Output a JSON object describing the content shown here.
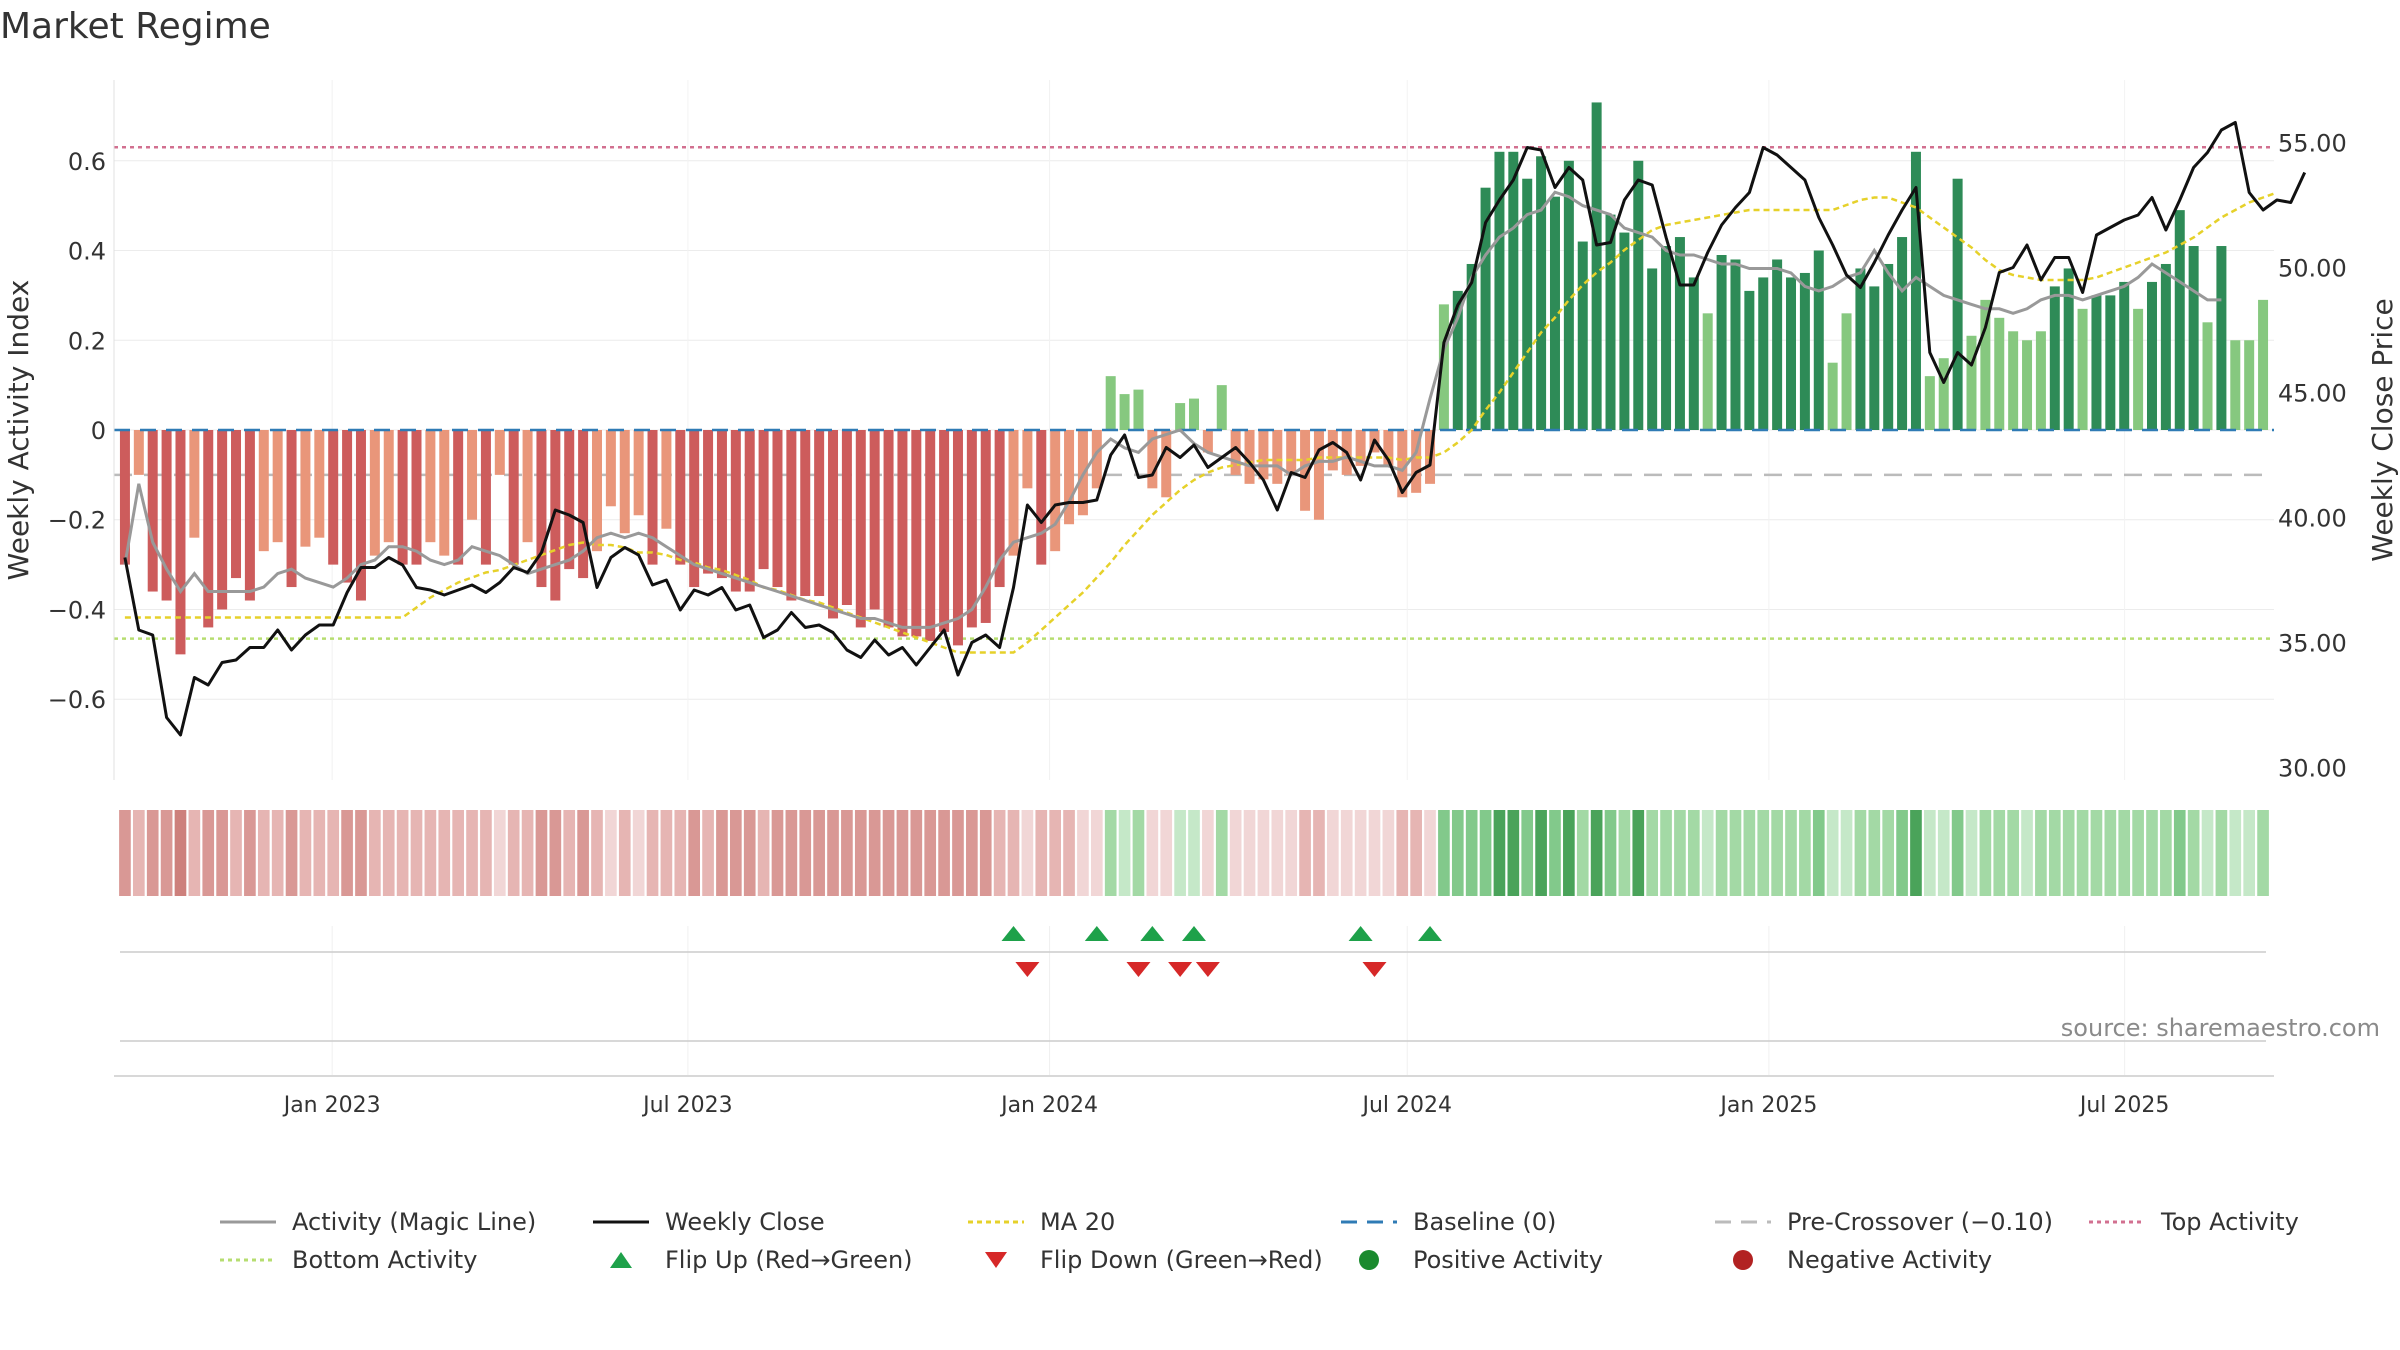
{
  "title": "Market Regime",
  "source": "source: sharemaestro.com",
  "colors": {
    "pos_dark": "#2e8b57",
    "pos_light": "#86c87f",
    "neg_dark": "#cd5c5c",
    "neg_light": "#e9967a",
    "magic": "#999999",
    "close": "#111111",
    "ma": "#e6d12a",
    "baseline": "#2f7bb5",
    "precross": "#bbbbbb",
    "top": "#d27090",
    "bottom": "#b6dd70",
    "flip_up": "#1ea14a",
    "flip_down": "#d62828",
    "marker_pos": "#1a8a2e",
    "marker_neg": "#b22222"
  },
  "chart_data": {
    "type": "bar",
    "x_labels": [
      "Jan 2023",
      "Jul 2023",
      "Jan 2024",
      "Jul 2024",
      "Jan 2025",
      "Jul 2025"
    ],
    "x_range": [
      "2022-09-12",
      "2025-09-15"
    ],
    "left_axis": {
      "label": "Weekly Activity Index",
      "ticks": [
        "0.6",
        "0.4",
        "0.2",
        "0",
        "−0.2",
        "−0.4",
        "−0.6"
      ],
      "ylim": [
        -0.78,
        0.78
      ]
    },
    "right_axis": {
      "label": "Weekly Close Price",
      "ticks": [
        "55.00",
        "50.00",
        "45.00",
        "40.00",
        "35.00",
        "30.00"
      ],
      "ylim": [
        29.5,
        57.5
      ]
    },
    "reference_lines": {
      "baseline": 0,
      "pre_crossover": -0.1,
      "top_activity": 0.63,
      "bottom_activity": -0.465
    },
    "activity": [
      -0.3,
      -0.1,
      -0.36,
      -0.38,
      -0.5,
      -0.24,
      -0.44,
      -0.4,
      -0.33,
      -0.38,
      -0.27,
      -0.25,
      -0.35,
      -0.26,
      -0.24,
      -0.3,
      -0.34,
      -0.38,
      -0.28,
      -0.25,
      -0.3,
      -0.3,
      -0.25,
      -0.28,
      -0.3,
      -0.2,
      -0.3,
      -0.1,
      -0.3,
      -0.25,
      -0.35,
      -0.38,
      -0.31,
      -0.33,
      -0.27,
      -0.17,
      -0.23,
      -0.19,
      -0.3,
      -0.22,
      -0.3,
      -0.35,
      -0.32,
      -0.33,
      -0.36,
      -0.36,
      -0.31,
      -0.35,
      -0.38,
      -0.37,
      -0.37,
      -0.42,
      -0.39,
      -0.44,
      -0.4,
      -0.44,
      -0.46,
      -0.46,
      -0.47,
      -0.45,
      -0.48,
      -0.44,
      -0.43,
      -0.35,
      -0.28,
      -0.13,
      -0.3,
      -0.27,
      -0.21,
      -0.19,
      -0.13,
      0.12,
      0.08,
      0.09,
      -0.13,
      -0.15,
      0.06,
      0.07,
      -0.05,
      0.1,
      -0.1,
      -0.12,
      -0.11,
      -0.12,
      -0.1,
      -0.18,
      -0.2,
      -0.09,
      -0.1,
      -0.08,
      -0.05,
      -0.08,
      -0.15,
      -0.14,
      -0.12,
      0.28,
      0.31,
      0.37,
      0.54,
      0.62,
      0.62,
      0.56,
      0.61,
      0.52,
      0.6,
      0.42,
      0.73,
      0.48,
      0.44,
      0.6,
      0.36,
      0.41,
      0.43,
      0.34,
      0.26,
      0.39,
      0.38,
      0.31,
      0.34,
      0.38,
      0.34,
      0.35,
      0.4,
      0.15,
      0.26,
      0.36,
      0.32,
      0.37,
      0.43,
      0.62,
      0.12,
      0.16,
      0.56,
      0.21,
      0.29,
      0.25,
      0.22,
      0.2,
      0.22,
      0.32,
      0.36,
      0.27,
      0.3,
      0.3,
      0.33,
      0.27,
      0.33,
      0.37,
      0.49,
      0.41,
      0.24,
      0.41,
      0.2,
      0.2,
      0.29
    ],
    "magic_line": [
      -0.3,
      -0.12,
      -0.25,
      -0.31,
      -0.36,
      -0.32,
      -0.36,
      -0.36,
      -0.36,
      -0.36,
      -0.35,
      -0.32,
      -0.31,
      -0.33,
      -0.34,
      -0.35,
      -0.33,
      -0.3,
      -0.29,
      -0.26,
      -0.26,
      -0.27,
      -0.29,
      -0.3,
      -0.29,
      -0.26,
      -0.27,
      -0.28,
      -0.3,
      -0.32,
      -0.31,
      -0.3,
      -0.29,
      -0.27,
      -0.24,
      -0.23,
      -0.24,
      -0.23,
      -0.24,
      -0.26,
      -0.28,
      -0.3,
      -0.31,
      -0.32,
      -0.33,
      -0.34,
      -0.35,
      -0.36,
      -0.37,
      -0.38,
      -0.39,
      -0.4,
      -0.41,
      -0.42,
      -0.42,
      -0.43,
      -0.44,
      -0.44,
      -0.44,
      -0.43,
      -0.42,
      -0.4,
      -0.35,
      -0.29,
      -0.25,
      -0.24,
      -0.23,
      -0.21,
      -0.16,
      -0.1,
      -0.05,
      -0.02,
      -0.04,
      -0.05,
      -0.02,
      -0.01,
      0,
      -0.03,
      -0.05,
      -0.06,
      -0.07,
      -0.08,
      -0.08,
      -0.08,
      -0.1,
      -0.08,
      -0.07,
      -0.07,
      -0.06,
      -0.07,
      -0.08,
      -0.08,
      -0.09,
      -0.05,
      0.07,
      0.18,
      0.25,
      0.34,
      0.39,
      0.43,
      0.45,
      0.48,
      0.49,
      0.53,
      0.52,
      0.5,
      0.49,
      0.48,
      0.45,
      0.44,
      0.43,
      0.4,
      0.39,
      0.39,
      0.38,
      0.37,
      0.37,
      0.36,
      0.36,
      0.36,
      0.35,
      0.32,
      0.31,
      0.32,
      0.34,
      0.35,
      0.4,
      0.35,
      0.31,
      0.34,
      0.32,
      0.3,
      0.29,
      0.28,
      0.27,
      0.27,
      0.26,
      0.27,
      0.29,
      0.3,
      0.3,
      0.29,
      0.3,
      0.31,
      0.32,
      0.34,
      0.37,
      0.35,
      0.33,
      0.31,
      0.29,
      0.29
    ],
    "weekly_close": [
      38.4,
      35.5,
      35.3,
      32.0,
      31.3,
      33.6,
      33.3,
      34.2,
      34.3,
      34.8,
      34.8,
      35.5,
      34.7,
      35.3,
      35.7,
      35.7,
      37.0,
      38.0,
      38.0,
      38.4,
      38.1,
      37.2,
      37.1,
      36.9,
      37.1,
      37.3,
      37.0,
      37.4,
      38.0,
      37.8,
      38.6,
      40.3,
      40.1,
      39.8,
      37.2,
      38.4,
      38.8,
      38.5,
      37.3,
      37.5,
      36.3,
      37.1,
      36.9,
      37.2,
      36.3,
      36.5,
      35.2,
      35.5,
      36.2,
      35.6,
      35.7,
      35.4,
      34.7,
      34.4,
      35.1,
      34.5,
      34.8,
      34.1,
      34.8,
      35.5,
      33.7,
      35.0,
      35.3,
      34.8,
      37.2,
      40.5,
      39.8,
      40.5,
      40.6,
      40.6,
      40.7,
      42.5,
      43.3,
      41.6,
      41.7,
      42.8,
      42.4,
      42.9,
      42.0,
      42.4,
      42.8,
      42.2,
      41.5,
      40.3,
      41.8,
      41.6,
      42.7,
      43.0,
      42.6,
      41.5,
      43.1,
      42.3,
      41.0,
      41.8,
      42.1,
      47.0,
      48.5,
      49.4,
      51.8,
      52.7,
      53.5,
      54.8,
      54.7,
      53.2,
      54.0,
      53.5,
      50.9,
      51.0,
      52.7,
      53.5,
      53.3,
      51.2,
      49.3,
      49.3,
      50.6,
      51.7,
      52.4,
      53.0,
      54.8,
      54.5,
      54.0,
      53.5,
      52.0,
      50.9,
      49.7,
      49.2,
      50.2,
      51.3,
      52.3,
      53.2,
      46.6,
      45.4,
      46.6,
      46.1,
      47.6,
      49.8,
      50.0,
      50.9,
      49.5,
      50.4,
      50.4,
      49.0,
      51.3,
      51.6,
      51.9,
      52.1,
      52.8,
      51.5,
      52.7,
      54.0,
      54.6,
      55.5,
      55.8,
      53.0,
      52.3,
      52.7,
      52.6,
      53.8
    ],
    "ma20": [
      36.0,
      36.0,
      36.0,
      36.0,
      36.0,
      36.0,
      36.0,
      36.0,
      36.0,
      36.0,
      36.0,
      36.0,
      36.0,
      36.0,
      36.0,
      36.0,
      36.0,
      36.0,
      36.0,
      36.0,
      36.0,
      36.4,
      36.8,
      37.1,
      37.4,
      37.6,
      37.8,
      37.9,
      38.1,
      38.3,
      38.5,
      38.7,
      38.9,
      39.0,
      38.9,
      38.9,
      38.8,
      38.6,
      38.6,
      38.5,
      38.3,
      38.2,
      38.0,
      37.9,
      37.7,
      37.5,
      37.2,
      37.1,
      36.9,
      36.7,
      36.6,
      36.4,
      36.2,
      36.0,
      35.8,
      35.6,
      35.4,
      35.2,
      35.0,
      34.8,
      34.6,
      34.6,
      34.6,
      34.6,
      34.6,
      35.0,
      35.5,
      36.0,
      36.5,
      37.0,
      37.6,
      38.2,
      38.9,
      39.5,
      40.1,
      40.6,
      41.1,
      41.5,
      41.8,
      42.0,
      42.1,
      42.2,
      42.3,
      42.3,
      42.3,
      42.3,
      42.4,
      42.4,
      42.4,
      42.4,
      42.4,
      42.4,
      42.3,
      42.4,
      42.4,
      42.6,
      43.0,
      43.5,
      44.3,
      45.0,
      45.8,
      46.6,
      47.4,
      48.0,
      48.7,
      49.3,
      49.8,
      50.2,
      50.7,
      51.1,
      51.5,
      51.7,
      51.8,
      51.9,
      52.0,
      52.1,
      52.2,
      52.3,
      52.3,
      52.3,
      52.3,
      52.3,
      52.3,
      52.3,
      52.5,
      52.7,
      52.8,
      52.8,
      52.6,
      52.4,
      52.0,
      51.6,
      51.2,
      50.8,
      50.3,
      49.9,
      49.7,
      49.6,
      49.5,
      49.5,
      49.5,
      49.5,
      49.6,
      49.8,
      50.0,
      50.2,
      50.4,
      50.6,
      50.9,
      51.2,
      51.6,
      52.0,
      52.3,
      52.6,
      52.8,
      53.0
    ],
    "strip_levels": [
      2,
      1,
      2,
      2,
      3,
      1,
      2,
      2,
      1,
      2,
      1,
      1,
      2,
      1,
      1,
      1,
      2,
      2,
      1,
      1,
      1,
      1,
      1,
      1,
      1,
      1,
      1,
      0,
      1,
      1,
      2,
      2,
      1,
      2,
      1,
      0,
      1,
      0,
      1,
      1,
      1,
      2,
      1,
      2,
      2,
      2,
      1,
      2,
      2,
      2,
      2,
      2,
      2,
      2,
      2,
      2,
      2,
      2,
      2,
      2,
      2,
      2,
      2,
      1,
      1,
      0,
      1,
      1,
      1,
      0,
      0,
      1,
      0,
      1,
      0,
      0,
      0,
      0,
      0,
      1,
      0,
      0,
      0,
      0,
      0,
      1,
      1,
      0,
      0,
      0,
      0,
      0,
      1,
      1,
      0,
      2,
      2,
      2,
      2,
      3,
      3,
      2,
      3,
      2,
      3,
      1,
      3,
      2,
      1,
      3,
      1,
      1,
      1,
      1,
      0,
      1,
      1,
      1,
      1,
      1,
      1,
      1,
      2,
      0,
      0,
      1,
      1,
      1,
      2,
      3,
      0,
      0,
      2,
      0,
      1,
      1,
      1,
      0,
      1,
      1,
      1,
      1,
      1,
      1,
      1,
      1,
      1,
      1,
      2,
      1,
      0,
      1,
      0,
      0,
      1
    ],
    "flip_up_idx": [
      64,
      70,
      74,
      77,
      89,
      94
    ],
    "flip_down_idx": [
      65,
      73,
      76,
      78,
      90
    ],
    "legend": [
      [
        "Activity (Magic Line)",
        "Weekly Close",
        "MA 20",
        "Baseline (0)",
        "Pre-Crossover (−0.10)",
        "Top Activity"
      ],
      [
        "Bottom Activity",
        "Flip Up (Red→Green)",
        "Flip Down (Green→Red)",
        "Positive Activity",
        "Negative Activity"
      ]
    ]
  }
}
